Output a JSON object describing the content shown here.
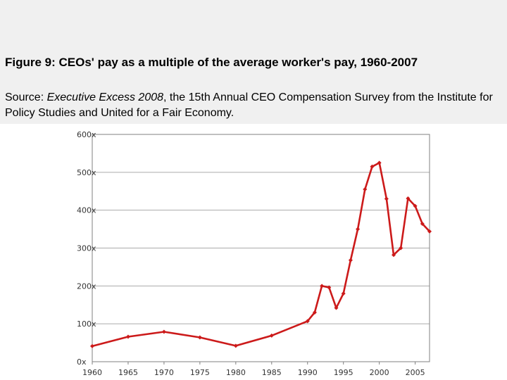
{
  "figure": {
    "title": "Figure 9: CEOs' pay as a multiple of the average worker's pay, 1960-2007",
    "source_prefix": "Source: ",
    "source_title": "Executive Excess 2008",
    "source_rest": ", the 15th Annual CEO Compensation Survey from the Institute for Policy Studies and United for a Fair Economy."
  },
  "colors": {
    "header_background": "#f0f0f0",
    "series_line": "#cc1a1a",
    "grid": "#aaaaaa",
    "axis": "#808080"
  },
  "chart_data": {
    "type": "line",
    "title": "",
    "xlabel": "",
    "ylabel": "",
    "xlim": [
      1960,
      2007
    ],
    "ylim": [
      0,
      600
    ],
    "grid": true,
    "legend": "none",
    "x_ticks": [
      1960,
      1965,
      1970,
      1975,
      1980,
      1985,
      1990,
      1995,
      2000,
      2005
    ],
    "x_tick_labels": [
      "1960",
      "1965",
      "1970",
      "1975",
      "1980",
      "1985",
      "1990",
      "1995",
      "2000",
      "2005"
    ],
    "y_ticks": [
      0,
      100,
      200,
      300,
      400,
      500,
      600
    ],
    "y_tick_labels": [
      "0x",
      "100x",
      "200x",
      "300x",
      "400x",
      "500x",
      "600x"
    ],
    "series": [
      {
        "x": [
          1960,
          1965,
          1970,
          1975,
          1980,
          1985,
          1990,
          1991,
          1992,
          1993,
          1994,
          1995,
          1996,
          1997,
          1998,
          1999,
          2000,
          2001,
          2002,
          2003,
          2004,
          2005,
          2006,
          2007
        ],
        "values": [
          41,
          66,
          79,
          64,
          42,
          69,
          107,
          130,
          200,
          196,
          142,
          180,
          268,
          350,
          455,
          515,
          525,
          430,
          282,
          300,
          431,
          411,
          364,
          344
        ]
      }
    ]
  }
}
